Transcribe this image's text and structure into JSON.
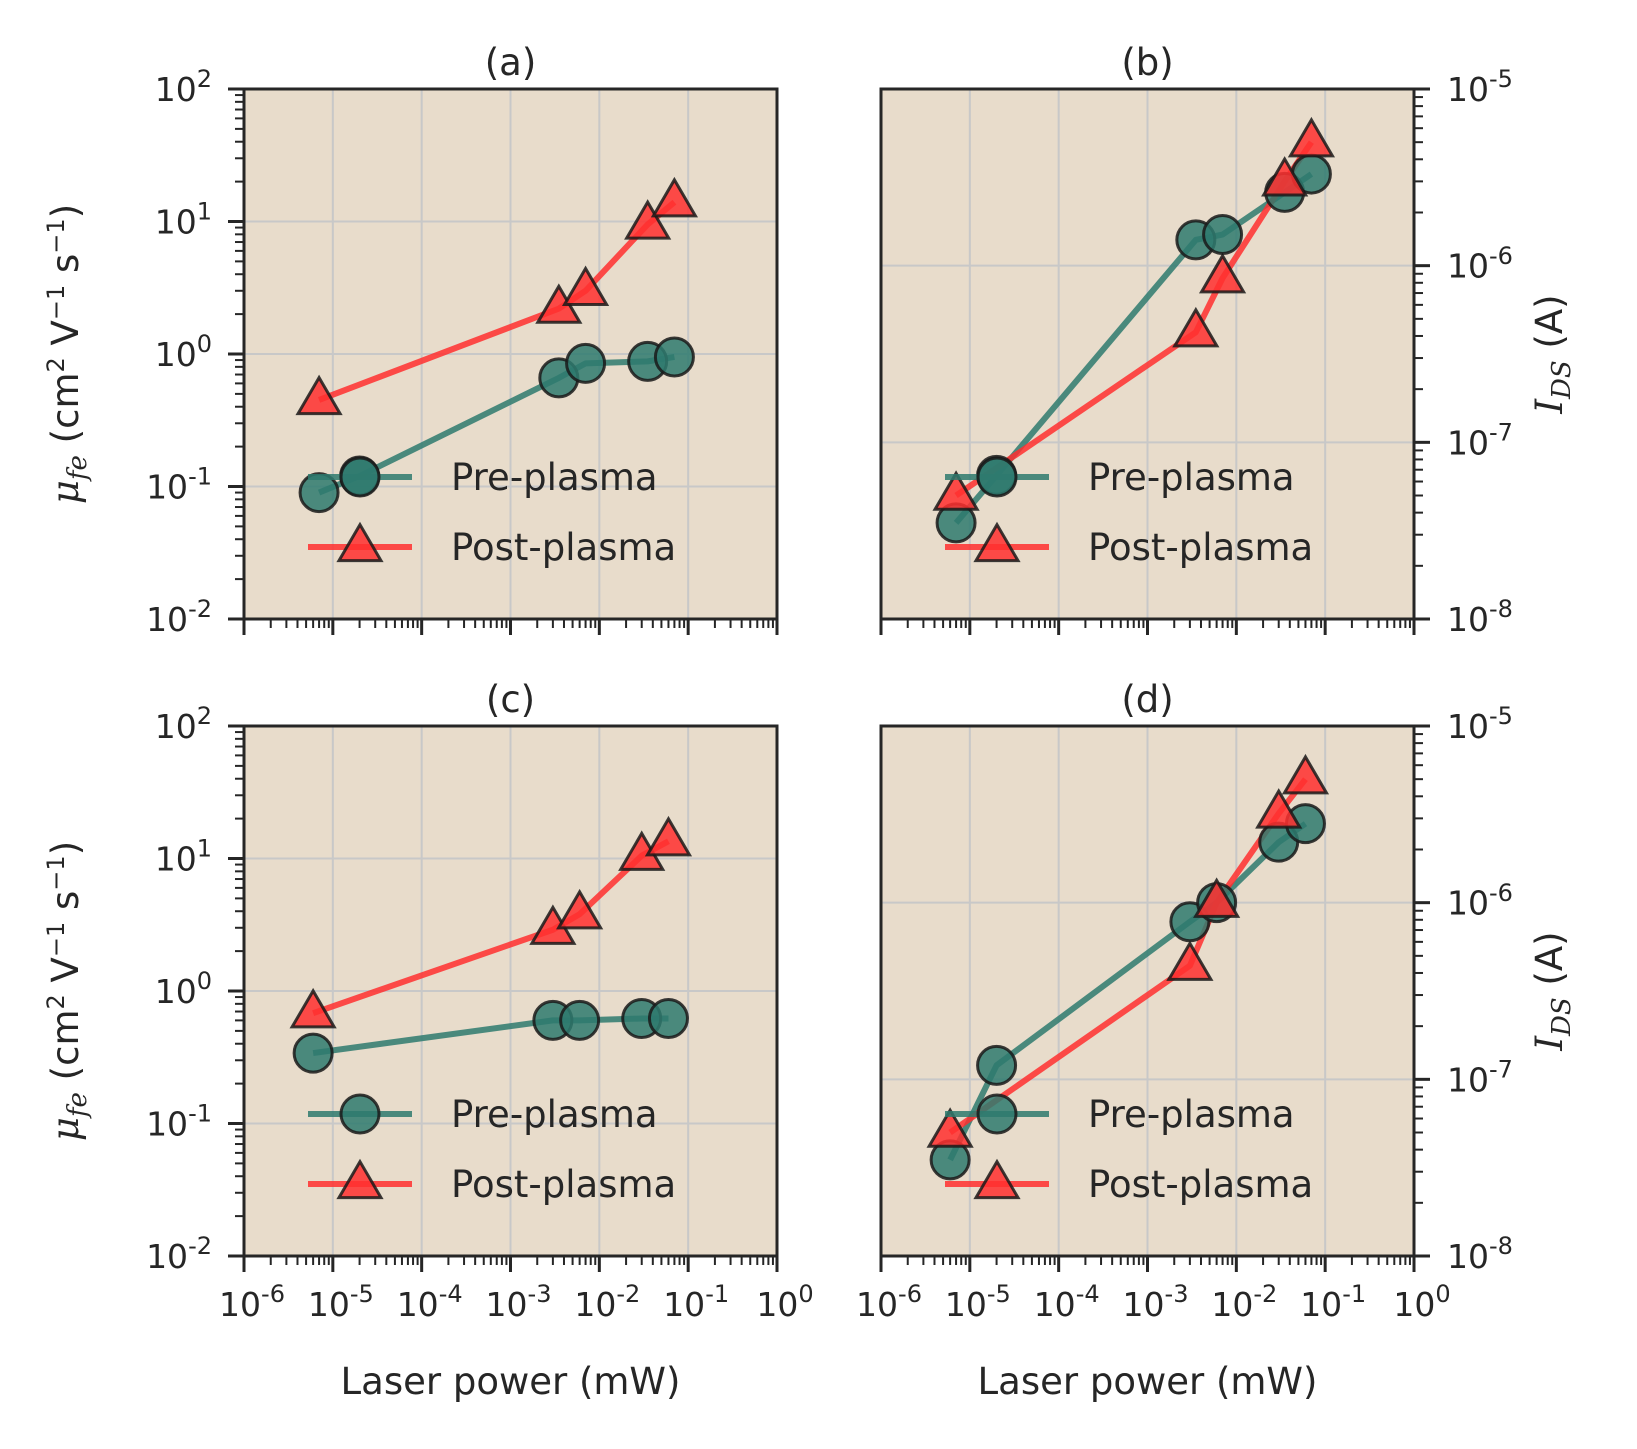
{
  "figure": {
    "background": "#ffffff",
    "axes_face": "#e8dccb",
    "grid_color": "#c8c8c8",
    "pre_color": "#2e7a6e",
    "post_color": "#ff2f2f"
  },
  "chart_data": [
    {
      "type": "line",
      "panel": "(a)",
      "title": "(a)",
      "xscale": "log",
      "yscale": "log",
      "xlim": [
        1e-06,
        1
      ],
      "ylim": [
        0.01,
        100
      ],
      "xlabel": "",
      "ylabel": "μ_fe (cm² V⁻¹ s⁻¹)",
      "y_axis_side": "left",
      "xtick_labels": [],
      "ytick_labels": [
        "10^-2",
        "10^-1",
        "10^0",
        "10^1",
        "10^2"
      ],
      "legend": "lower-right",
      "grid": true,
      "series": [
        {
          "name": "Pre-plasma",
          "marker": "circle",
          "x": [
            7e-06,
            2e-05,
            0.0035,
            0.007,
            0.035,
            0.07
          ],
          "y": [
            0.09,
            0.12,
            0.66,
            0.85,
            0.88,
            0.95
          ]
        },
        {
          "name": "Post-plasma",
          "marker": "triangle",
          "x": [
            7e-06,
            0.0035,
            0.007,
            0.035,
            0.07
          ],
          "y": [
            0.45,
            2.2,
            3.0,
            9.5,
            14
          ]
        }
      ]
    },
    {
      "type": "line",
      "panel": "(b)",
      "title": "(b)",
      "xscale": "log",
      "yscale": "log",
      "xlim": [
        1e-06,
        1
      ],
      "ylim": [
        1e-08,
        1e-05
      ],
      "xlabel": "",
      "ylabel": "I_DS (A)",
      "y_axis_side": "right",
      "xtick_labels": [],
      "ytick_labels": [
        "10^-8",
        "10^-7",
        "10^-6",
        "10^-5"
      ],
      "legend": "lower-right",
      "grid": true,
      "series": [
        {
          "name": "Pre-plasma",
          "marker": "circle",
          "x": [
            7e-06,
            2e-05,
            0.0035,
            0.007,
            0.035,
            0.07
          ],
          "y": [
            3.5e-08,
            6.5e-08,
            1.4e-06,
            1.5e-06,
            2.6e-06,
            3.3e-06
          ]
        },
        {
          "name": "Post-plasma",
          "marker": "triangle",
          "x": [
            7e-06,
            0.0035,
            0.007,
            0.035,
            0.07
          ],
          "y": [
            5e-08,
            4.2e-07,
            8.5e-07,
            3e-06,
            5e-06
          ]
        }
      ]
    },
    {
      "type": "line",
      "panel": "(c)",
      "title": "(c)",
      "xscale": "log",
      "yscale": "log",
      "xlim": [
        1e-06,
        1
      ],
      "ylim": [
        0.01,
        100
      ],
      "xlabel": "Laser power (mW)",
      "ylabel": "μ_fe (cm² V⁻¹ s⁻¹)",
      "y_axis_side": "left",
      "xtick_labels": [
        "10^-6",
        "10^-5",
        "10^-4",
        "10^-3",
        "10^-2",
        "10^-1",
        "10^0"
      ],
      "ytick_labels": [
        "10^-2",
        "10^-1",
        "10^0",
        "10^1",
        "10^2"
      ],
      "legend": "lower-right",
      "grid": true,
      "series": [
        {
          "name": "Pre-plasma",
          "marker": "circle",
          "x": [
            6e-06,
            0.003,
            0.006,
            0.03,
            0.06
          ],
          "y": [
            0.34,
            0.6,
            0.6,
            0.62,
            0.62
          ]
        },
        {
          "name": "Post-plasma",
          "marker": "triangle",
          "x": [
            6e-06,
            0.003,
            0.006,
            0.03,
            0.06
          ],
          "y": [
            0.68,
            2.9,
            3.8,
            10.5,
            13.5
          ]
        }
      ]
    },
    {
      "type": "line",
      "panel": "(d)",
      "title": "(d)",
      "xscale": "log",
      "yscale": "log",
      "xlim": [
        1e-06,
        1
      ],
      "ylim": [
        1e-08,
        1e-05
      ],
      "xlabel": "Laser power (mW)",
      "ylabel": "I_DS (A)",
      "y_axis_side": "right",
      "xtick_labels": [
        "10^-6",
        "10^-5",
        "10^-4",
        "10^-3",
        "10^-2",
        "10^-1",
        "10^0"
      ],
      "ytick_labels": [
        "10^-8",
        "10^-7",
        "10^-6",
        "10^-5"
      ],
      "legend": "lower-right",
      "grid": true,
      "series": [
        {
          "name": "Pre-plasma",
          "marker": "circle",
          "x": [
            6e-06,
            2e-05,
            0.003,
            0.006,
            0.03,
            0.06
          ],
          "y": [
            3.5e-08,
            1.2e-07,
            7.8e-07,
            1e-06,
            2.2e-06,
            2.8e-06
          ]
        },
        {
          "name": "Post-plasma",
          "marker": "triangle",
          "x": [
            6e-06,
            0.003,
            0.006,
            0.03,
            0.06
          ],
          "y": [
            5e-08,
            4.4e-07,
            1e-06,
            3.2e-06,
            5e-06
          ]
        }
      ]
    }
  ]
}
